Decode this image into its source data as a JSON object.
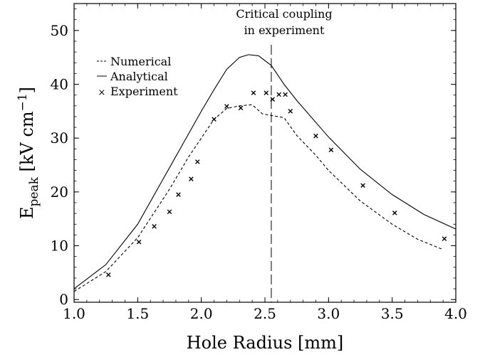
{
  "chart_data": {
    "type": "line",
    "title": "",
    "xlabel": "Hole Radius [mm]",
    "ylabel": {
      "main": "E",
      "sub": "peak",
      "units_prefix": " [kV cm",
      "units_sup": "−1",
      "units_suffix": "]"
    },
    "xlim": [
      1.0,
      4.0
    ],
    "ylim": [
      -0.5,
      55
    ],
    "x_ticks": [
      1.0,
      1.5,
      2.0,
      2.5,
      3.0,
      3.5,
      4.0
    ],
    "x_tick_labels": [
      "1.0",
      "1.5",
      "2.0",
      "2.5",
      "3.0",
      "3.5",
      "4.0"
    ],
    "y_ticks": [
      0,
      10,
      20,
      30,
      40,
      50
    ],
    "y_tick_labels": [
      "0",
      "10",
      "20",
      "30",
      "40",
      "50"
    ],
    "grid": false,
    "legend_position": "upper-left",
    "series": [
      {
        "name": "Numerical",
        "style": "dashed",
        "x": [
          1.0,
          1.25,
          1.5,
          1.75,
          1.9,
          2.0,
          2.1,
          2.2,
          2.3,
          2.4,
          2.48,
          2.55,
          2.65,
          2.75,
          2.9,
          3.0,
          3.25,
          3.5,
          3.7,
          3.9
        ],
        "y": [
          1.5,
          5.2,
          11.5,
          20.5,
          26.5,
          30.0,
          33.5,
          35.5,
          36.0,
          36.2,
          34.5,
          34.2,
          33.8,
          30.5,
          26.8,
          24.0,
          18.3,
          14.0,
          11.2,
          9.3
        ]
      },
      {
        "name": "Analytical",
        "style": "solid",
        "x": [
          1.0,
          1.25,
          1.5,
          1.75,
          2.0,
          2.1,
          2.2,
          2.3,
          2.37,
          2.45,
          2.55,
          2.65,
          2.75,
          3.0,
          3.25,
          3.5,
          3.75,
          4.0
        ],
        "y": [
          2.0,
          6.5,
          14.0,
          24.5,
          35.0,
          39.0,
          42.8,
          45.0,
          45.5,
          45.3,
          43.5,
          40.0,
          37.0,
          30.2,
          24.2,
          19.5,
          15.8,
          13.1
        ]
      },
      {
        "name": "Experiment",
        "style": "marker-x",
        "x": [
          1.27,
          1.51,
          1.63,
          1.75,
          1.82,
          1.92,
          1.97,
          2.1,
          2.2,
          2.31,
          2.41,
          2.51,
          2.56,
          2.61,
          2.66,
          2.7,
          2.9,
          3.02,
          3.27,
          3.52,
          3.91
        ],
        "y": [
          4.6,
          10.7,
          13.6,
          16.3,
          19.5,
          22.4,
          25.6,
          33.5,
          35.9,
          35.6,
          38.4,
          38.4,
          37.2,
          38.1,
          38.1,
          35.0,
          30.4,
          27.8,
          21.2,
          16.1,
          11.3
        ]
      }
    ],
    "annotations": [
      {
        "type": "vertical-line",
        "style": "long-dash",
        "x": 2.55,
        "label_line1": "Critical coupling",
        "label_line2": "in experiment"
      }
    ]
  }
}
